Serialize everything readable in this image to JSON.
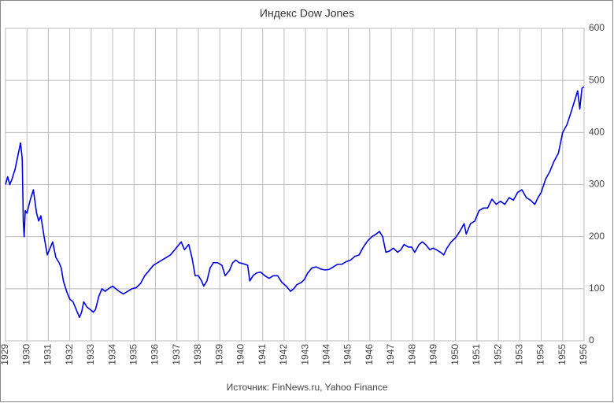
{
  "chart_data": {
    "type": "line",
    "title": "Индекс Dow Jones",
    "source": "Источник: FinNews.ru, Yahoo Finance",
    "color": "#0000e6",
    "grid": true,
    "y_axis_side": "right",
    "xlim": [
      1929,
      1956
    ],
    "ylim": [
      0,
      600
    ],
    "xticks": [
      1929,
      1930,
      1931,
      1932,
      1933,
      1934,
      1935,
      1936,
      1937,
      1938,
      1939,
      1940,
      1941,
      1942,
      1943,
      1944,
      1945,
      1946,
      1947,
      1948,
      1949,
      1950,
      1951,
      1952,
      1953,
      1954,
      1955,
      1956
    ],
    "yticks": [
      0,
      100,
      200,
      300,
      400,
      500,
      600
    ],
    "series": [
      {
        "name": "Dow Jones",
        "color": "#0000e6",
        "x": [
          1929.0,
          1929.1,
          1929.2,
          1929.3,
          1929.45,
          1929.6,
          1929.7,
          1929.78,
          1929.83,
          1929.87,
          1929.92,
          1930.0,
          1930.15,
          1930.3,
          1930.45,
          1930.55,
          1930.65,
          1930.8,
          1930.95,
          1931.1,
          1931.2,
          1931.35,
          1931.5,
          1931.6,
          1931.7,
          1931.85,
          1932.0,
          1932.15,
          1932.3,
          1932.45,
          1932.55,
          1932.65,
          1932.8,
          1932.95,
          1933.1,
          1933.2,
          1933.35,
          1933.5,
          1933.65,
          1933.8,
          1934.0,
          1934.15,
          1934.3,
          1934.5,
          1934.7,
          1934.9,
          1935.1,
          1935.3,
          1935.5,
          1935.7,
          1935.9,
          1936.1,
          1936.3,
          1936.5,
          1936.7,
          1936.9,
          1937.1,
          1937.2,
          1937.35,
          1937.55,
          1937.7,
          1937.85,
          1938.0,
          1938.15,
          1938.25,
          1938.4,
          1938.55,
          1938.7,
          1938.9,
          1939.1,
          1939.25,
          1939.45,
          1939.6,
          1939.75,
          1939.9,
          1940.1,
          1940.3,
          1940.4,
          1940.55,
          1940.7,
          1940.9,
          1941.1,
          1941.3,
          1941.5,
          1941.7,
          1941.9,
          1942.1,
          1942.3,
          1942.45,
          1942.6,
          1942.8,
          1942.95,
          1943.1,
          1943.3,
          1943.5,
          1943.7,
          1943.9,
          1944.1,
          1944.3,
          1944.5,
          1944.7,
          1944.9,
          1945.1,
          1945.3,
          1945.5,
          1945.7,
          1945.9,
          1946.1,
          1946.3,
          1946.45,
          1946.6,
          1946.75,
          1946.9,
          1947.1,
          1947.3,
          1947.45,
          1947.6,
          1947.8,
          1947.95,
          1948.1,
          1948.3,
          1948.45,
          1948.6,
          1948.8,
          1948.95,
          1949.1,
          1949.3,
          1949.45,
          1949.6,
          1949.8,
          1950.0,
          1950.2,
          1950.4,
          1950.5,
          1950.7,
          1950.9,
          1951.1,
          1951.3,
          1951.5,
          1951.7,
          1951.9,
          1952.1,
          1952.3,
          1952.5,
          1952.7,
          1952.9,
          1953.1,
          1953.3,
          1953.5,
          1953.7,
          1953.85,
          1954.0,
          1954.2,
          1954.4,
          1954.6,
          1954.8,
          1955.0,
          1955.2,
          1955.4,
          1955.55,
          1955.7,
          1955.8,
          1955.9,
          1956.0
        ],
        "values": [
          300,
          315,
          300,
          310,
          330,
          360,
          380,
          350,
          230,
          200,
          250,
          245,
          270,
          290,
          245,
          230,
          240,
          200,
          165,
          180,
          190,
          160,
          150,
          140,
          115,
          95,
          80,
          75,
          60,
          45,
          55,
          75,
          65,
          60,
          55,
          60,
          85,
          100,
          95,
          100,
          105,
          100,
          95,
          90,
          95,
          100,
          102,
          110,
          125,
          135,
          145,
          150,
          155,
          160,
          165,
          175,
          185,
          190,
          175,
          185,
          160,
          125,
          125,
          115,
          105,
          115,
          140,
          150,
          150,
          145,
          125,
          135,
          150,
          155,
          150,
          148,
          145,
          115,
          125,
          130,
          132,
          125,
          120,
          125,
          125,
          112,
          105,
          95,
          100,
          108,
          112,
          118,
          130,
          140,
          142,
          138,
          136,
          137,
          142,
          147,
          147,
          152,
          155,
          162,
          165,
          180,
          192,
          200,
          205,
          210,
          200,
          170,
          172,
          178,
          170,
          175,
          185,
          180,
          180,
          170,
          185,
          190,
          185,
          175,
          178,
          175,
          170,
          165,
          178,
          190,
          198,
          210,
          225,
          205,
          225,
          230,
          250,
          255,
          255,
          272,
          262,
          268,
          262,
          275,
          270,
          285,
          290,
          275,
          270,
          262,
          275,
          285,
          310,
          325,
          345,
          360,
          400,
          415,
          440,
          460,
          480,
          445,
          485,
          488
        ]
      }
    ]
  }
}
